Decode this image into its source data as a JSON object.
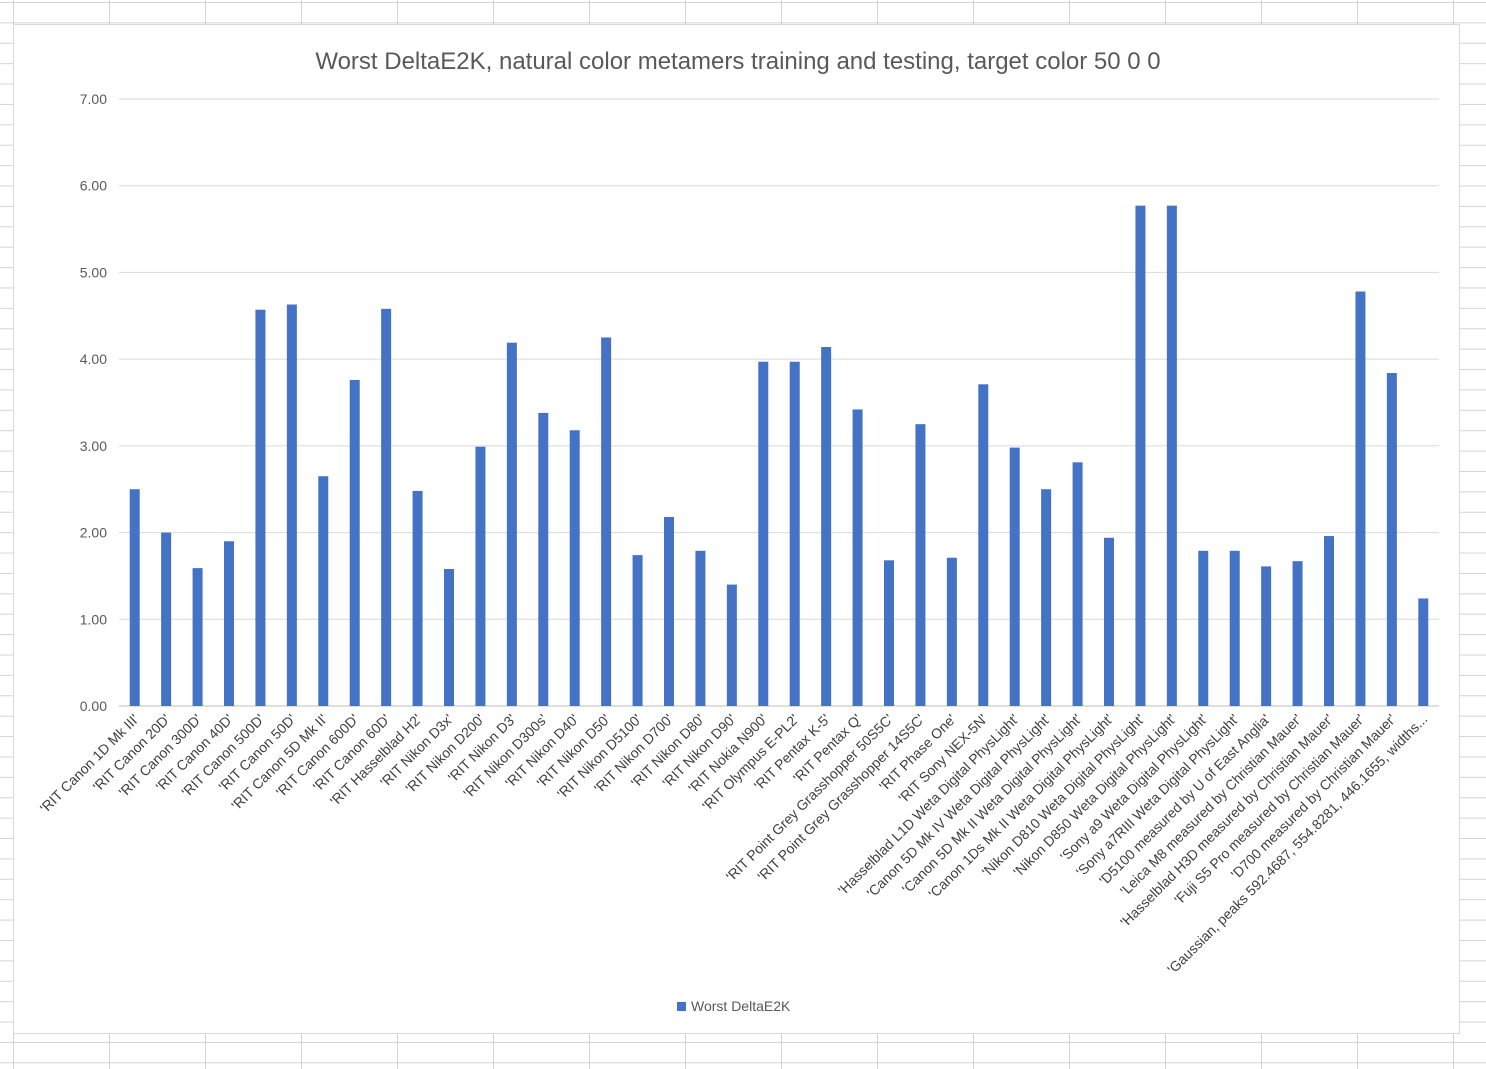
{
  "colors": {
    "bar": "#4472C4",
    "gridline": "#d9d9d9",
    "axis": "#bfbfbf"
  },
  "chart_data": {
    "type": "bar",
    "title": "Worst DeltaE2K, natural color metamers training and testing, target color 50 0 0",
    "xlabel": "",
    "ylabel": "",
    "ylim": [
      0,
      7
    ],
    "yticks": [
      "0.00",
      "1.00",
      "2.00",
      "3.00",
      "4.00",
      "5.00",
      "6.00",
      "7.00"
    ],
    "grid": true,
    "legend_position": "bottom",
    "categories": [
      "'RIT Canon 1D Mk III'",
      "'RIT Canon 20D'",
      "'RIT Canon 300D'",
      "'RIT Canon 40D'",
      "'RIT Canon 500D'",
      "'RIT Canon 50D'",
      "'RIT Canon 5D Mk II'",
      "'RIT Canon 600D'",
      "'RIT Canon 60D'",
      "'RIT Hasselblad H2'",
      "'RIT Nikon D3x'",
      "'RIT Nikon D200'",
      "'RIT Nikon D3'",
      "'RIT Nikon D300s'",
      "'RIT Nikon D40'",
      "'RIT Nikon D50'",
      "'RIT Nikon D5100'",
      "'RIT Nikon D700'",
      "'RIT Nikon D80'",
      "'RIT Nikon D90'",
      "'RIT Nokia N900'",
      "'RIT Olympus E-PL2'",
      "'RIT Pentax K-5'",
      "'RIT Pentax Q'",
      "'RIT Point Grey Grasshopper 50S5C'",
      "'RIT Point Grey Grasshopper 14S5C'",
      "'RIT Phase One'",
      "'RIT Sony NEX-5N'",
      "'Hasselblad L1D Weta Digital PhysLight'",
      "'Canon 5D Mk IV Weta Digital PhysLight'",
      "'Canon 5D Mk II Weta Digital PhysLight'",
      "'Canon 1Ds Mk II Weta Digital PhysLight'",
      "'Nikon D810 Weta Digital PhysLight'",
      "'Nikon D850 Weta Digital PhysLight'",
      "'Sony a9 Weta Digital PhysLight'",
      "'Sony a7RIII Weta Digital PhysLight'",
      "'D5100 measured by U of East Anglia'",
      "'Leica M8 measured by Christian Mauer'",
      "'Hasselblad H3D measured by Christian Mauer'",
      "'Fuji S5 Pro measured by Christian Mauer'",
      "'D700 measured by Christian Mauer'",
      "'Gaussian, peaks 592.4687, 554.8281, 446.1655, widths..."
    ],
    "series": [
      {
        "name": "Worst DeltaE2K",
        "values": [
          2.5,
          2.0,
          1.59,
          1.9,
          4.57,
          4.63,
          2.65,
          3.76,
          4.58,
          2.48,
          1.58,
          2.99,
          4.19,
          3.38,
          3.18,
          4.25,
          1.74,
          2.18,
          1.79,
          1.4,
          3.97,
          3.97,
          4.14,
          3.42,
          1.68,
          3.25,
          1.71,
          3.71,
          2.98,
          2.5,
          2.81,
          1.94,
          5.77,
          5.77,
          1.79,
          1.79,
          1.61,
          1.67,
          1.96,
          4.78,
          3.84,
          1.24
        ]
      }
    ]
  }
}
